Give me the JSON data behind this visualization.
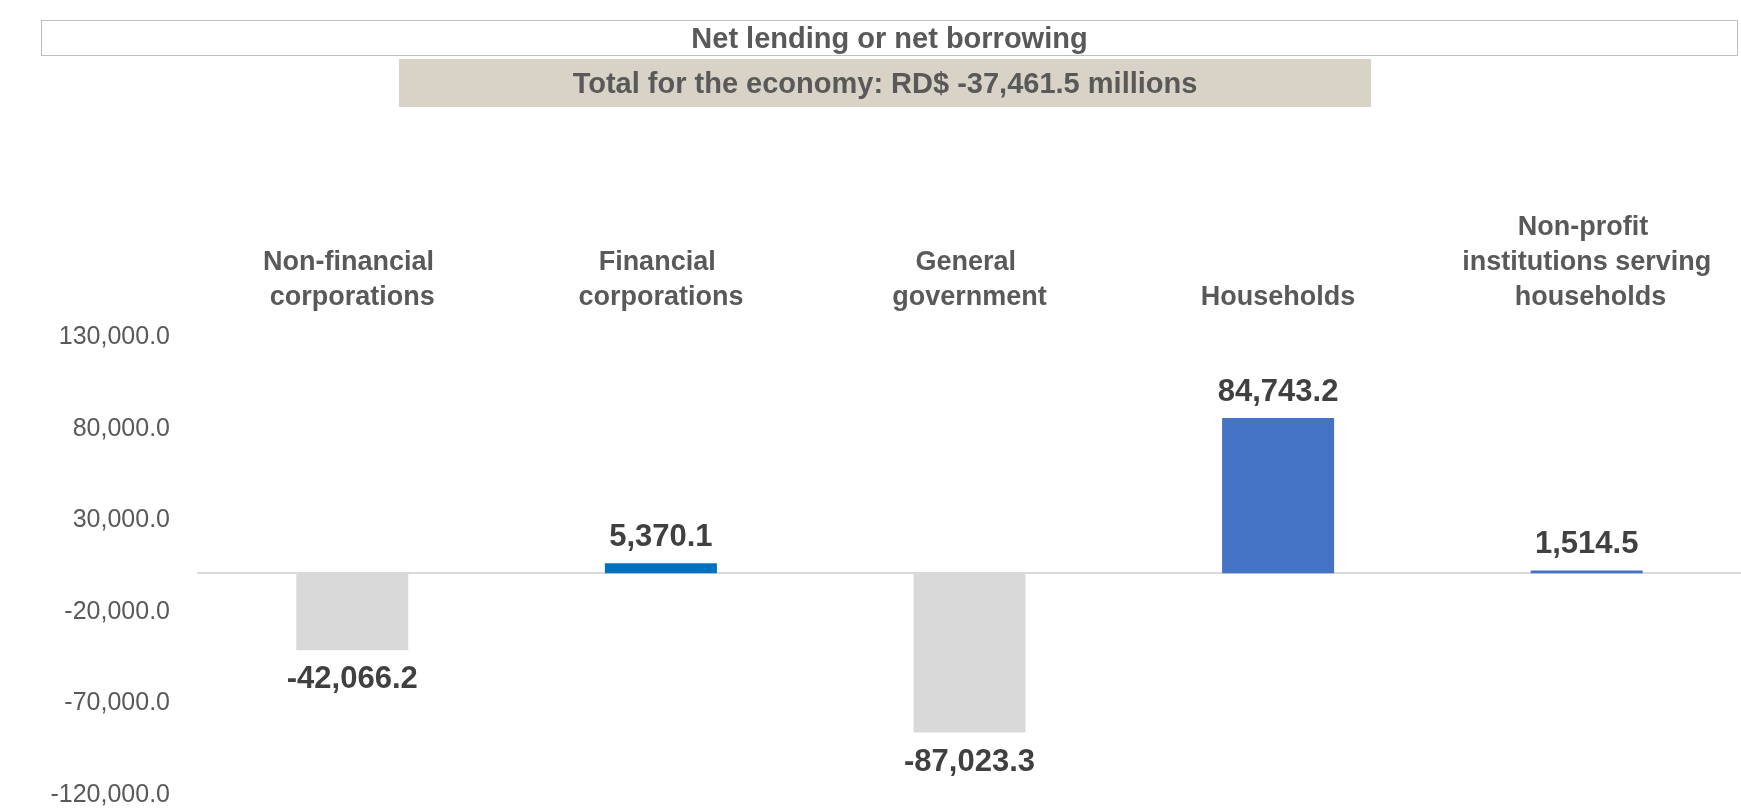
{
  "chart_data": {
    "type": "bar",
    "title": "Net lending or net borrowing",
    "subtitle": "Total for the economy: RD$ -37,461.5 millions",
    "categories": [
      "Non-financial corporations",
      "Financial corporations",
      "General government",
      "Households",
      "Non-profit institutions serving households"
    ],
    "values": [
      -42066.2,
      5370.1,
      -87023.3,
      84743.2,
      1514.5
    ],
    "value_labels": [
      "-42,066.2",
      "5,370.1",
      "-87,023.3",
      "84,743.2",
      "1,514.5"
    ],
    "colors": [
      "#d9d9d9",
      "#0070c0",
      "#d9d9d9",
      "#4472c4",
      "#4472c4"
    ],
    "ylim": [
      -120000,
      130000
    ],
    "yticks": [
      {
        "value": -120000,
        "label": "-120,000.0"
      },
      {
        "value": -70000,
        "label": "-70,000.0"
      },
      {
        "value": -20000,
        "label": "-20,000.0"
      },
      {
        "value": 30000,
        "label": "30,000.0"
      },
      {
        "value": 80000,
        "label": "80,000.0"
      },
      {
        "value": 130000,
        "label": "130,000.0"
      }
    ],
    "grid": false
  }
}
